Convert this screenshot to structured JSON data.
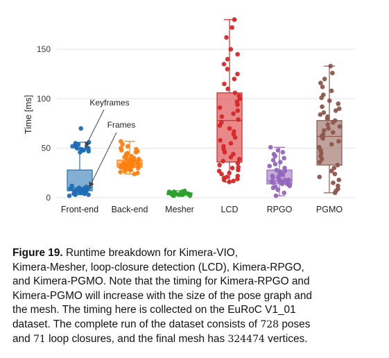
{
  "chart_data": {
    "type": "box",
    "title": "",
    "xlabel": "",
    "ylabel": "Time [ms]",
    "ylim": [
      -3,
      185
    ],
    "yticks": [
      0,
      50,
      100,
      150
    ],
    "grid": true,
    "categories": [
      "Front-end",
      "Back-end",
      "Mesher",
      "LCD",
      "RPGO",
      "PGMO"
    ],
    "colors": [
      "#1f6db3",
      "#ff7f0e",
      "#2ca02c",
      "#d62728",
      "#9467bd",
      "#8c564b"
    ],
    "boxes": [
      {
        "category": "Front-end",
        "min": 3,
        "q1": 7,
        "median": 10,
        "q3": 28,
        "max": 56,
        "points": [
          2,
          3,
          3,
          4,
          4,
          5,
          5,
          5,
          6,
          6,
          6,
          7,
          7,
          7,
          8,
          8,
          8,
          9,
          9,
          10,
          10,
          11,
          12,
          46,
          47,
          48,
          48,
          49,
          49,
          50,
          50,
          51,
          51,
          52,
          52,
          53,
          54,
          55,
          56,
          70
        ]
      },
      {
        "category": "Back-end",
        "min": 24,
        "q1": 31,
        "median": 34,
        "q3": 38,
        "max": 57,
        "points": [
          24,
          25,
          26,
          27,
          28,
          29,
          29,
          30,
          30,
          31,
          31,
          31,
          32,
          32,
          32,
          33,
          33,
          33,
          34,
          34,
          34,
          34,
          35,
          35,
          35,
          36,
          36,
          36,
          37,
          37,
          38,
          38,
          39,
          39,
          40,
          41,
          42,
          43,
          44,
          45,
          46,
          47,
          48,
          49,
          50,
          52,
          54,
          57
        ]
      },
      {
        "category": "Mesher",
        "min": 2,
        "q1": 3,
        "median": 4,
        "q3": 5,
        "max": 7,
        "points": [
          2,
          2,
          3,
          3,
          3,
          3,
          4,
          4,
          4,
          4,
          4,
          4,
          5,
          5,
          5,
          5,
          5,
          6,
          6,
          6,
          7
        ]
      },
      {
        "category": "LCD",
        "min": 16,
        "q1": 36,
        "median": 78,
        "q3": 106,
        "max": 180,
        "points": [
          16,
          17,
          18,
          19,
          20,
          21,
          22,
          24,
          25,
          27,
          28,
          30,
          31,
          33,
          35,
          37,
          39,
          41,
          44,
          46,
          49,
          52,
          55,
          58,
          61,
          64,
          67,
          70,
          73,
          76,
          79,
          82,
          85,
          88,
          91,
          94,
          97,
          100,
          103,
          106,
          110,
          115,
          120,
          125,
          130,
          135,
          140,
          145,
          150,
          162,
          172,
          180
        ]
      },
      {
        "category": "RPGO",
        "min": 2,
        "q1": 14,
        "median": 17,
        "q3": 28,
        "max": 51,
        "points": [
          2,
          5,
          8,
          10,
          11,
          12,
          13,
          14,
          14,
          15,
          15,
          16,
          16,
          17,
          17,
          18,
          18,
          19,
          20,
          21,
          22,
          23,
          24,
          25,
          26,
          27,
          28,
          30,
          32,
          34,
          36,
          38,
          40,
          42,
          44,
          46,
          48,
          51
        ]
      },
      {
        "category": "PGMO",
        "min": 5,
        "q1": 33,
        "median": 62,
        "q3": 78,
        "max": 133,
        "points": [
          5,
          7,
          9,
          12,
          15,
          18,
          21,
          24,
          27,
          30,
          33,
          36,
          39,
          42,
          45,
          48,
          51,
          54,
          57,
          60,
          62,
          64,
          66,
          68,
          70,
          72,
          74,
          76,
          78,
          80,
          82,
          84,
          86,
          88,
          90,
          92,
          95,
          98,
          101,
          104,
          108,
          112,
          116,
          120,
          126,
          133
        ]
      }
    ],
    "annotations": [
      {
        "text": "Keyframes",
        "target_category": "Front-end",
        "target_value": 50
      },
      {
        "text": "Frames",
        "target_category": "Front-end",
        "target_value": 8
      }
    ]
  },
  "caption": {
    "label": "Figure 19.",
    "lines": [
      " Runtime breakdown for Kimera-VIO,",
      "Kimera-Mesher, loop-closure detection (LCD), Kimera-RPGO,",
      "and Kimera-PGMO. Note that the timing for Kimera-RPGO and",
      "Kimera-PGMO will increase with the size of the pose graph and",
      "the mesh. The timing here is collected on the EuRoC V1_01",
      "dataset. The complete run of the dataset consists of "
    ],
    "num_poses": "728",
    "after_poses": " poses",
    "line7_start": "and ",
    "num_loops": "71",
    "line7_mid": " loop closures, and the final mesh has ",
    "num_vertices": "324474",
    "line7_end": " vertices."
  }
}
